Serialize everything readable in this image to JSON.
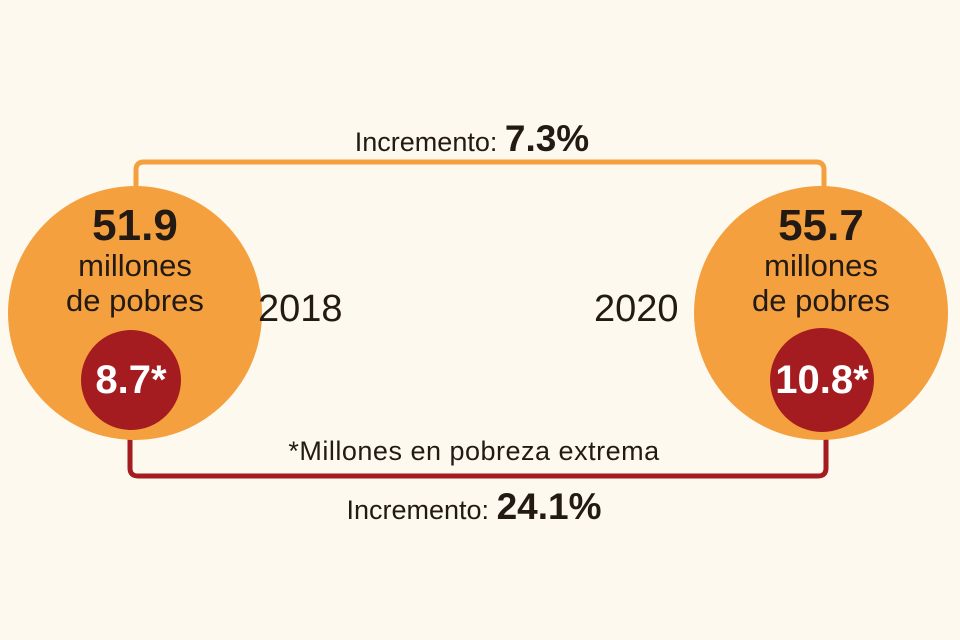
{
  "top_connector": {
    "label": "Incremento:",
    "value": "7.3%"
  },
  "bottom_connector": {
    "label": "Incremento:",
    "value": "24.1%"
  },
  "left_node": {
    "year": "2018",
    "number": "51.9",
    "line1": "millones",
    "line2": "de pobres",
    "extreme": "8.7*"
  },
  "right_node": {
    "year": "2020",
    "number": "55.7",
    "line1": "millones",
    "line2": "de pobres",
    "extreme": "10.8*"
  },
  "footnote": "*Millones en pobreza extrema",
  "colors": {
    "background": "#fdf9ee",
    "orange": "#f4a03e",
    "dark_red": "#a41c1f",
    "text": "#231a14"
  }
}
